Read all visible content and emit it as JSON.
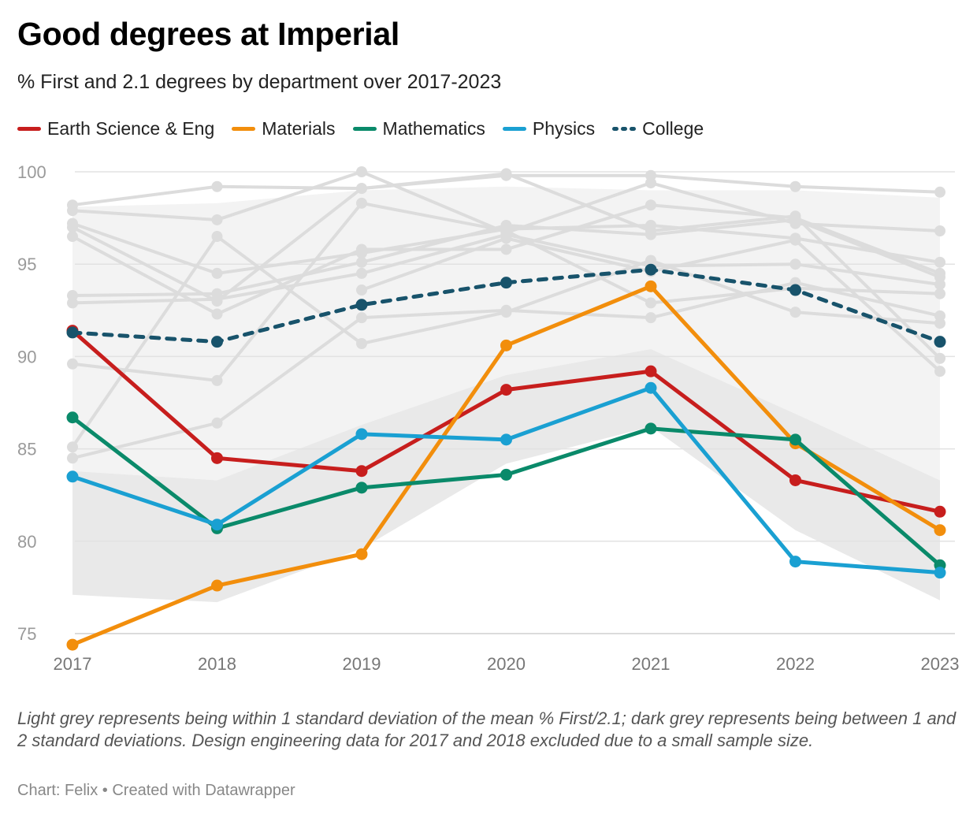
{
  "title": "Good degrees at Imperial",
  "subtitle": "% First and 2.1 degrees by department over 2017-2023",
  "note": "Light grey represents being within 1 standard deviation of the mean % First/2.1; dark grey represents being between 1 and 2 standard deviations. Design engineering data for 2017 and 2018 excluded due to a small sample size.",
  "credit": "Chart: Felix • Created with Datawrapper",
  "chart_data": {
    "type": "line",
    "title": "Good degrees at Imperial",
    "subtitle": "% First and 2.1 degrees by department over 2017-2023",
    "x": [
      "2017",
      "2018",
      "2019",
      "2020",
      "2021",
      "2022",
      "2023"
    ],
    "ylim": [
      75,
      100
    ],
    "yticks": [
      75,
      80,
      85,
      90,
      95,
      100
    ],
    "grid": true,
    "legend_position": "top-left",
    "series": [
      {
        "name": "Earth Science & Eng",
        "color": "#c71e1d",
        "style": "solid",
        "values": [
          91.4,
          84.5,
          83.8,
          88.2,
          89.2,
          83.3,
          81.6
        ]
      },
      {
        "name": "Materials",
        "color": "#f28e0c",
        "style": "solid",
        "values": [
          74.4,
          77.6,
          79.3,
          90.6,
          93.8,
          85.3,
          80.6
        ]
      },
      {
        "name": "Mathematics",
        "color": "#0a8a6a",
        "style": "solid",
        "values": [
          86.7,
          80.7,
          82.9,
          83.6,
          86.1,
          85.5,
          78.7
        ]
      },
      {
        "name": "Physics",
        "color": "#1aa0d2",
        "style": "solid",
        "values": [
          83.5,
          80.9,
          85.8,
          85.5,
          88.3,
          78.9,
          78.3
        ]
      },
      {
        "name": "College",
        "color": "#18536b",
        "style": "dotted",
        "values": [
          91.3,
          90.8,
          92.8,
          94.0,
          94.7,
          93.6,
          90.8
        ]
      }
    ],
    "background_series": [
      {
        "values": [
          98.2,
          99.2,
          99.1,
          99.8,
          99.8,
          99.2,
          98.9
        ]
      },
      {
        "values": [
          97.9,
          97.4,
          100.0,
          96.7,
          99.4,
          97.2,
          96.8
        ]
      },
      {
        "values": [
          97.2,
          94.5,
          95.6,
          96.9,
          97.1,
          96.4,
          95.1
        ]
      },
      {
        "values": [
          96.5,
          92.3,
          95.8,
          95.8,
          98.2,
          97.5,
          94.5
        ]
      },
      {
        "values": [
          93.3,
          93.4,
          95.1,
          97.1,
          96.6,
          97.4,
          94.3
        ]
      },
      {
        "values": [
          92.9,
          93.1,
          94.5,
          96.6,
          94.9,
          95.0,
          93.9
        ]
      },
      {
        "values": [
          89.6,
          88.7,
          98.3,
          96.8,
          92.9,
          93.7,
          93.4
        ]
      },
      {
        "values": [
          85.1,
          96.5,
          90.7,
          92.4,
          95.2,
          92.4,
          91.8
        ]
      },
      {
        "values": [
          84.5,
          86.4,
          92.1,
          92.5,
          92.1,
          94.0,
          92.2
        ]
      },
      {
        "values": [
          97.0,
          93.0,
          99.1,
          99.9,
          96.8,
          97.6,
          89.9
        ]
      },
      {
        "values": [
          null,
          null,
          93.6,
          96.4,
          94.6,
          96.3,
          89.2
        ]
      }
    ],
    "band_inner": {
      "label": "within 1 standard deviation",
      "upper": [
        98.1,
        98.3,
        99.0,
        99.2,
        99.0,
        99.0,
        98.6
      ],
      "lower": [
        83.8,
        83.3,
        86.3,
        89.0,
        90.4,
        86.9,
        83.3
      ]
    },
    "band_outer": {
      "label": "between 1 and 2 standard deviations",
      "upper": [
        83.8,
        83.3,
        86.3,
        89.0,
        90.4,
        86.9,
        83.3
      ],
      "lower": [
        77.1,
        76.7,
        79.6,
        84.2,
        86.2,
        80.6,
        76.8
      ]
    }
  }
}
